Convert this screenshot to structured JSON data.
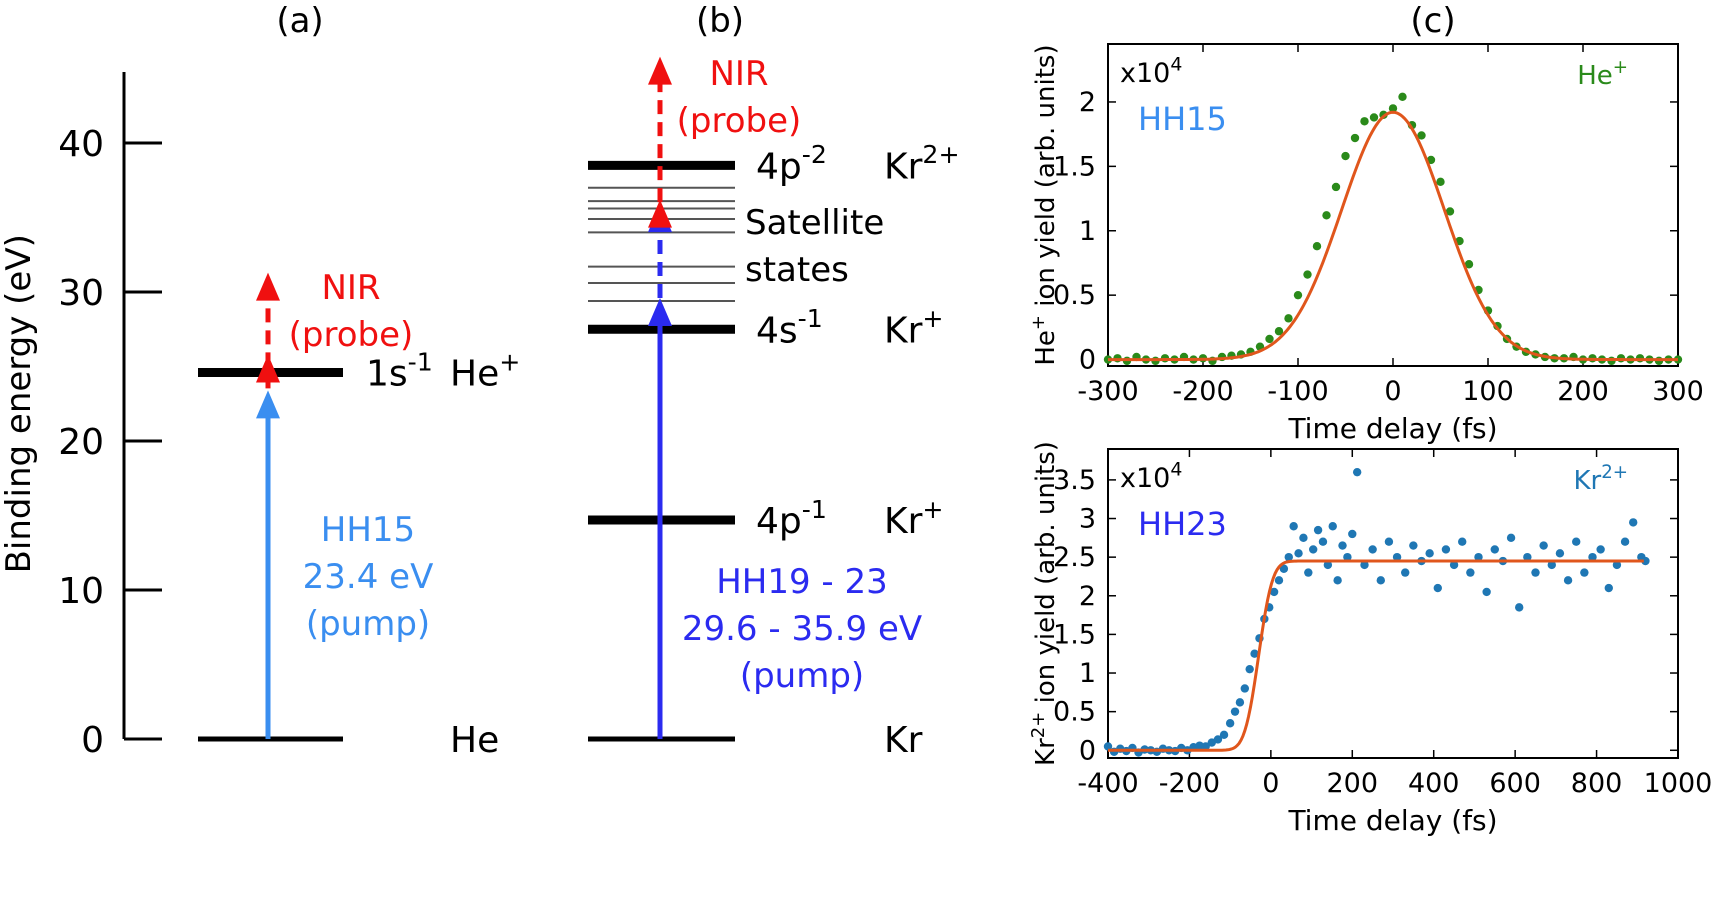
{
  "panels": {
    "a": {
      "label": "(a)"
    },
    "b": {
      "label": "(b)"
    },
    "c": {
      "label": "(c)"
    }
  },
  "chart_data": [
    {
      "type": "diagram",
      "panel": "(a)",
      "ylabel": "Binding energy (eV)",
      "ylim": [
        0,
        45
      ],
      "yticks": [
        0,
        10,
        20,
        30,
        40
      ],
      "levels": [
        {
          "energy": 0,
          "label": "He",
          "thickness": "thin"
        },
        {
          "energy": 24.6,
          "label": "1s",
          "sup": "-1",
          "species": "He",
          "species_sup": "+",
          "thickness": "thick"
        }
      ],
      "arrows": [
        {
          "from": 0,
          "to": 23.4,
          "color": "#3a8ef0",
          "style": "solid",
          "label": [
            "HH15",
            "23.4 eV",
            "(pump)"
          ]
        },
        {
          "from": 23.4,
          "to": 31.3,
          "color": "#f01010",
          "style": "dashed",
          "label": [
            "NIR",
            "(probe)"
          ]
        }
      ]
    },
    {
      "type": "diagram",
      "panel": "(b)",
      "levels": [
        {
          "energy": 0,
          "label": "Kr",
          "thickness": "thin"
        },
        {
          "energy": 14.7,
          "label": "4p",
          "sup": "-1",
          "species": "Kr",
          "species_sup": "+",
          "thickness": "thick"
        },
        {
          "energy": 27.5,
          "label": "4s",
          "sup": "-1",
          "species": "Kr",
          "species_sup": "+",
          "thickness": "thick"
        },
        {
          "energy": 38.5,
          "label": "4p",
          "sup": "-2",
          "species": "Kr",
          "species_sup": "2+",
          "thickness": "thick"
        }
      ],
      "satellite_energies": [
        29.4,
        30.6,
        31.7,
        34.0,
        34.9,
        35.6,
        36.1,
        37.0
      ],
      "satellite_label": [
        "Satellite",
        "states"
      ],
      "arrows": [
        {
          "from": 0,
          "to": 29.6,
          "color": "#2b2bf0",
          "style": "solid",
          "label": [
            "HH19 - 23",
            "29.6 - 35.9 eV",
            "(pump)"
          ]
        },
        {
          "from": 29.6,
          "to": 35.9,
          "color": "#2b2bf0",
          "style": "dashed"
        },
        {
          "from": 35.9,
          "to": 45.8,
          "color": "#f01010",
          "style": "dashed",
          "label": [
            "NIR",
            "(probe)"
          ]
        }
      ]
    },
    {
      "type": "scatter",
      "panel": "(c) top",
      "xlabel": "Time delay (fs)",
      "ylabel": "He⁺ ion yield (arb. units)",
      "ylabel_parts": [
        "He",
        "+",
        " ion yield (arb. units)"
      ],
      "xlim": [
        -300,
        300
      ],
      "ylim": [
        -0.05,
        2.45
      ],
      "xticks": [
        -300,
        -200,
        -100,
        0,
        100,
        200,
        300
      ],
      "yticks": [
        0,
        0.5,
        1,
        1.5,
        2
      ],
      "ytick_labels": [
        "0",
        "0.5",
        "1",
        "1.5",
        "2"
      ],
      "multiplier": "x10",
      "multiplier_sup": "4",
      "legend": {
        "text": "He",
        "sup": "+",
        "position": "top-right"
      },
      "annotation": "HH15",
      "colors": {
        "points": "#2a8a1a",
        "fit": "#e0561c",
        "annotation": "#3a8ef0"
      },
      "fit": {
        "model": "gaussian",
        "amplitude": 1.92,
        "center": 0,
        "sigma": 54,
        "offset": 0
      },
      "points": {
        "x": [
          -300,
          -290,
          -280,
          -270,
          -260,
          -250,
          -240,
          -230,
          -220,
          -210,
          -200,
          -190,
          -180,
          -170,
          -160,
          -150,
          -140,
          -130,
          -120,
          -110,
          -100,
          -90,
          -80,
          -70,
          -60,
          -50,
          -40,
          -30,
          -20,
          -10,
          0,
          10,
          20,
          30,
          40,
          50,
          60,
          70,
          80,
          90,
          100,
          110,
          120,
          130,
          140,
          150,
          160,
          170,
          180,
          190,
          200,
          210,
          220,
          230,
          240,
          250,
          260,
          270,
          280,
          290,
          300
        ],
        "y": [
          0.0,
          0.01,
          -0.01,
          0.02,
          0.0,
          -0.01,
          0.01,
          0.0,
          0.02,
          0.0,
          0.01,
          -0.01,
          0.02,
          0.03,
          0.04,
          0.06,
          0.1,
          0.16,
          0.22,
          0.32,
          0.5,
          0.66,
          0.88,
          1.12,
          1.34,
          1.58,
          1.72,
          1.85,
          1.88,
          1.9,
          1.95,
          2.04,
          1.82,
          1.74,
          1.55,
          1.38,
          1.15,
          0.92,
          0.74,
          0.54,
          0.38,
          0.26,
          0.16,
          0.1,
          0.06,
          0.04,
          0.02,
          0.01,
          0.01,
          0.02,
          0.0,
          0.01,
          0.0,
          -0.01,
          0.01,
          0.0,
          0.01,
          0.0,
          -0.01,
          0.0,
          0.0
        ]
      }
    },
    {
      "type": "scatter",
      "panel": "(c) bottom",
      "xlabel": "Time delay (fs)",
      "ylabel": "Kr²⁺ ion yield (arb. units)",
      "ylabel_parts": [
        "Kr",
        "2+",
        " ion yield (arb. units)"
      ],
      "xlim": [
        -400,
        1000
      ],
      "ylim": [
        -0.1,
        3.9
      ],
      "xticks": [
        -400,
        -200,
        0,
        200,
        400,
        600,
        800,
        1000
      ],
      "yticks": [
        0,
        0.5,
        1,
        1.5,
        2,
        2.5,
        3,
        3.5
      ],
      "ytick_labels": [
        "0",
        "0.5",
        "1",
        "1.5",
        "2",
        "2.5",
        "3",
        "3.5"
      ],
      "multiplier": "x10",
      "multiplier_sup": "4",
      "legend": {
        "text": "Kr",
        "sup": "2+",
        "position": "top-right"
      },
      "annotation": "HH23",
      "colors": {
        "points": "#1f77b4",
        "fit": "#e0561c",
        "annotation": "#2b2bf0"
      },
      "fit": {
        "model": "error-function step",
        "plateau": 2.45,
        "center": -30,
        "width": 38
      },
      "points": {
        "x": [
          -400,
          -385,
          -370,
          -355,
          -340,
          -325,
          -310,
          -295,
          -280,
          -265,
          -250,
          -235,
          -220,
          -205,
          -190,
          -175,
          -160,
          -145,
          -130,
          -115,
          -100,
          -88,
          -76,
          -64,
          -52,
          -40,
          -28,
          -16,
          -4,
          8,
          20,
          32,
          44,
          56,
          68,
          80,
          92,
          104,
          116,
          128,
          140,
          152,
          164,
          176,
          188,
          200,
          212,
          230,
          250,
          270,
          290,
          310,
          330,
          350,
          370,
          390,
          410,
          430,
          450,
          470,
          490,
          510,
          530,
          550,
          570,
          590,
          610,
          630,
          650,
          670,
          690,
          710,
          730,
          750,
          770,
          790,
          810,
          830,
          850,
          870,
          890,
          910,
          920
        ],
        "y": [
          0.05,
          -0.02,
          0.02,
          -0.01,
          0.03,
          -0.03,
          0.01,
          0.0,
          -0.02,
          0.02,
          0.0,
          -0.01,
          0.03,
          0.0,
          0.04,
          0.06,
          0.05,
          0.1,
          0.14,
          0.2,
          0.35,
          0.5,
          0.62,
          0.8,
          1.05,
          1.25,
          1.45,
          1.7,
          1.85,
          2.05,
          2.2,
          2.35,
          2.5,
          2.9,
          2.55,
          2.75,
          2.3,
          2.6,
          2.85,
          2.7,
          2.4,
          2.9,
          2.2,
          2.65,
          2.5,
          2.8,
          3.6,
          2.4,
          2.6,
          2.2,
          2.7,
          2.5,
          2.3,
          2.65,
          2.45,
          2.55,
          2.1,
          2.6,
          2.4,
          2.7,
          2.3,
          2.5,
          2.05,
          2.6,
          2.45,
          2.75,
          1.85,
          2.5,
          2.3,
          2.65,
          2.4,
          2.55,
          2.2,
          2.7,
          2.3,
          2.5,
          2.6,
          2.1,
          2.4,
          2.7,
          2.95,
          2.5,
          2.45
        ]
      }
    }
  ]
}
